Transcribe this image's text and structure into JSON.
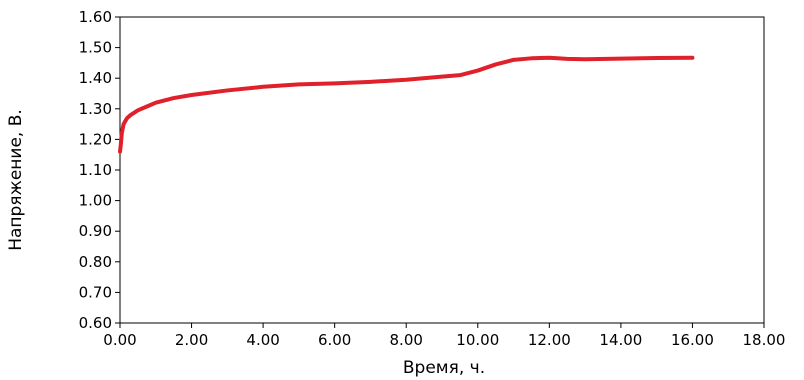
{
  "chart_data": {
    "type": "line",
    "title": "",
    "xlabel": "Время, ч.",
    "ylabel": "Напряжение, В.",
    "xlim": [
      0,
      18
    ],
    "ylim": [
      0.6,
      1.6
    ],
    "x_ticks": [
      "0.00",
      "2.00",
      "4.00",
      "6.00",
      "8.00",
      "10.00",
      "12.00",
      "14.00",
      "16.00",
      "18.00"
    ],
    "y_ticks": [
      "0.60",
      "0.70",
      "0.80",
      "0.90",
      "1.00",
      "1.10",
      "1.20",
      "1.30",
      "1.40",
      "1.50",
      "1.60"
    ],
    "grid": false,
    "legend": "none",
    "series": [
      {
        "color": "#e0202a",
        "x": [
          0.0,
          0.02,
          0.05,
          0.1,
          0.15,
          0.2,
          0.3,
          0.5,
          0.8,
          1.0,
          1.5,
          2.0,
          3.0,
          4.0,
          5.0,
          6.0,
          7.0,
          8.0,
          9.0,
          9.5,
          10.0,
          10.5,
          11.0,
          11.5,
          12.0,
          12.5,
          13.0,
          14.0,
          15.0,
          16.0
        ],
        "y": [
          1.16,
          1.18,
          1.22,
          1.25,
          1.26,
          1.27,
          1.28,
          1.295,
          1.31,
          1.32,
          1.335,
          1.345,
          1.36,
          1.372,
          1.38,
          1.383,
          1.388,
          1.395,
          1.405,
          1.41,
          1.425,
          1.445,
          1.46,
          1.465,
          1.467,
          1.463,
          1.462,
          1.464,
          1.466,
          1.467
        ]
      }
    ]
  }
}
